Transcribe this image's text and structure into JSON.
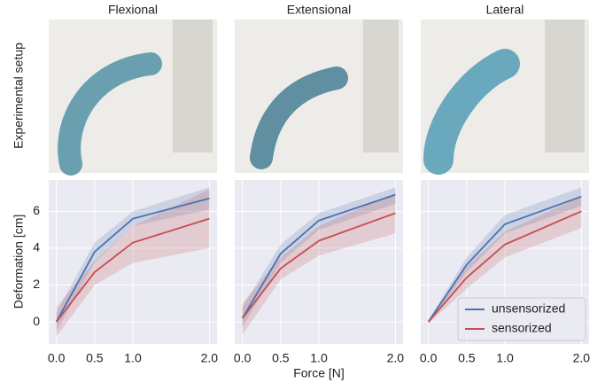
{
  "figure": {
    "row_label": "Experimental setup"
  },
  "chart_data": [
    {
      "type": "line",
      "title": "Flexional",
      "ylabel": "Deformation [cm]",
      "x": [
        0,
        0.5,
        1,
        2
      ],
      "xlim": [
        -0.1,
        2.1
      ],
      "ylim": [
        -1.2,
        7.7
      ],
      "xticks": [
        {
          "value": 0,
          "label": "0.0"
        },
        {
          "value": 0.5,
          "label": "0.5"
        },
        {
          "value": 1,
          "label": "1.0"
        },
        {
          "value": 2,
          "label": "2.0"
        }
      ],
      "yticks": [
        0,
        2,
        4,
        6
      ],
      "grid": true,
      "series": [
        {
          "color": "#4c72b0",
          "values": [
            0,
            3.8,
            5.6,
            6.7
          ],
          "upper": [
            0.5,
            4.3,
            6.0,
            7.3
          ],
          "lower": [
            -0.5,
            3.2,
            5.2,
            6.1
          ]
        },
        {
          "color": "#c44e52",
          "values": [
            0,
            2.7,
            4.3,
            5.6
          ],
          "upper": [
            0.8,
            3.3,
            5.2,
            7.2
          ],
          "lower": [
            -0.8,
            2.0,
            3.2,
            4.0
          ]
        }
      ]
    },
    {
      "type": "line",
      "title": "Extensional",
      "xlabel": "Force [N]",
      "x": [
        0,
        0.5,
        1,
        2
      ],
      "xlim": [
        -0.1,
        2.1
      ],
      "ylim": [
        -1.2,
        7.7
      ],
      "xticks": [
        {
          "value": 0,
          "label": "0.0"
        },
        {
          "value": 0.5,
          "label": "0.5"
        },
        {
          "value": 1,
          "label": "1.0"
        },
        {
          "value": 2,
          "label": "2.0"
        }
      ],
      "yticks": [
        0,
        2,
        4,
        6
      ],
      "grid": true,
      "series": [
        {
          "color": "#4c72b0",
          "values": [
            0.2,
            3.7,
            5.5,
            6.9
          ],
          "upper": [
            0.8,
            4.2,
            5.9,
            7.3
          ],
          "lower": [
            -0.3,
            3.2,
            5.0,
            6.4
          ]
        },
        {
          "color": "#c44e52",
          "values": [
            0.2,
            2.9,
            4.4,
            5.9
          ],
          "upper": [
            1.0,
            3.5,
            5.2,
            7.0
          ],
          "lower": [
            -0.7,
            2.3,
            3.6,
            4.8
          ]
        }
      ]
    },
    {
      "type": "line",
      "title": "Lateral",
      "legend": "lower right",
      "x": [
        0,
        0.5,
        1,
        2
      ],
      "xlim": [
        -0.1,
        2.1
      ],
      "ylim": [
        -1.2,
        7.7
      ],
      "xticks": [
        {
          "value": 0,
          "label": "0.0"
        },
        {
          "value": 0.5,
          "label": "0.5"
        },
        {
          "value": 1,
          "label": "1.0"
        },
        {
          "value": 2,
          "label": "2.0"
        }
      ],
      "yticks": [
        0,
        2,
        4,
        6
      ],
      "grid": true,
      "series": [
        {
          "name": "unsensorized",
          "color": "#4c72b0",
          "values": [
            0,
            3.1,
            5.3,
            6.8
          ],
          "upper": [
            0.1,
            3.5,
            5.8,
            7.3
          ],
          "lower": [
            -0.1,
            2.7,
            4.8,
            6.3
          ]
        },
        {
          "name": "sensorized",
          "color": "#c44e52",
          "values": [
            0,
            2.4,
            4.2,
            6.0
          ],
          "upper": [
            0.1,
            3.0,
            4.9,
            6.8
          ],
          "lower": [
            -0.1,
            1.8,
            3.5,
            5.1
          ]
        }
      ]
    }
  ]
}
